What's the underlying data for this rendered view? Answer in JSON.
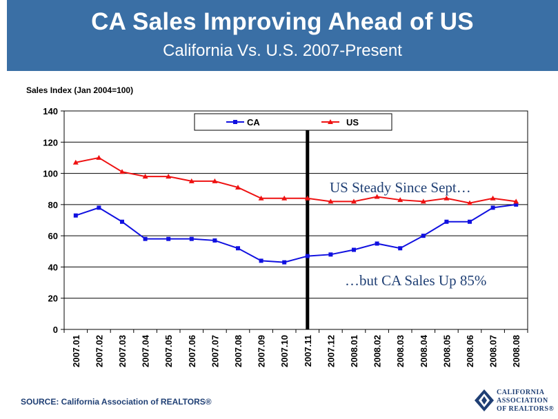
{
  "header": {
    "title": "CA Sales Improving Ahead of US",
    "subtitle": "California Vs. U.S. 2007-Present"
  },
  "source": "SOURCE: California Association of REALTORS®",
  "logo": {
    "line1": "CALIFORNIA",
    "line2": "ASSOCIATION",
    "line3": "OF REALTORS®"
  },
  "colors": {
    "header_bg": "#3a6fa5",
    "ca": "#1010e0",
    "us": "#ee1111",
    "marker_line": "#000000"
  },
  "chart_data": {
    "type": "line",
    "ylabel": "Sales Index (Jan 2004=100)",
    "xlabel": "",
    "ylim": [
      0,
      140
    ],
    "yticks": [
      0,
      20,
      40,
      60,
      80,
      100,
      120,
      140
    ],
    "grid": "horizontal",
    "legend_position": "top-center",
    "categories": [
      "2007.01",
      "2007.02",
      "2007.03",
      "2007.04",
      "2007.05",
      "2007.06",
      "2007.07",
      "2007.08",
      "2007.09",
      "2007.10",
      "2007.11",
      "2007.12",
      "2008.01",
      "2008.02",
      "2008.03",
      "2008.04",
      "2008.05",
      "2008.06",
      "2008.07",
      "2008.08"
    ],
    "series": [
      {
        "name": "CA",
        "color": "#1010e0",
        "marker": "square",
        "values": [
          73,
          78,
          69,
          58,
          58,
          58,
          57,
          52,
          44,
          43,
          47,
          48,
          51,
          55,
          52,
          60,
          69,
          69,
          78,
          80
        ]
      },
      {
        "name": "US",
        "color": "#ee1111",
        "marker": "triangle",
        "values": [
          107,
          110,
          101,
          98,
          98,
          95,
          95,
          91,
          84,
          84,
          84,
          82,
          82,
          85,
          83,
          82,
          84,
          81,
          84,
          82
        ]
      }
    ],
    "vertical_marker_category": "2007.11",
    "annotations": [
      {
        "text": "US Steady Since Sept…"
      },
      {
        "text": "…but CA Sales Up 85%"
      }
    ]
  }
}
